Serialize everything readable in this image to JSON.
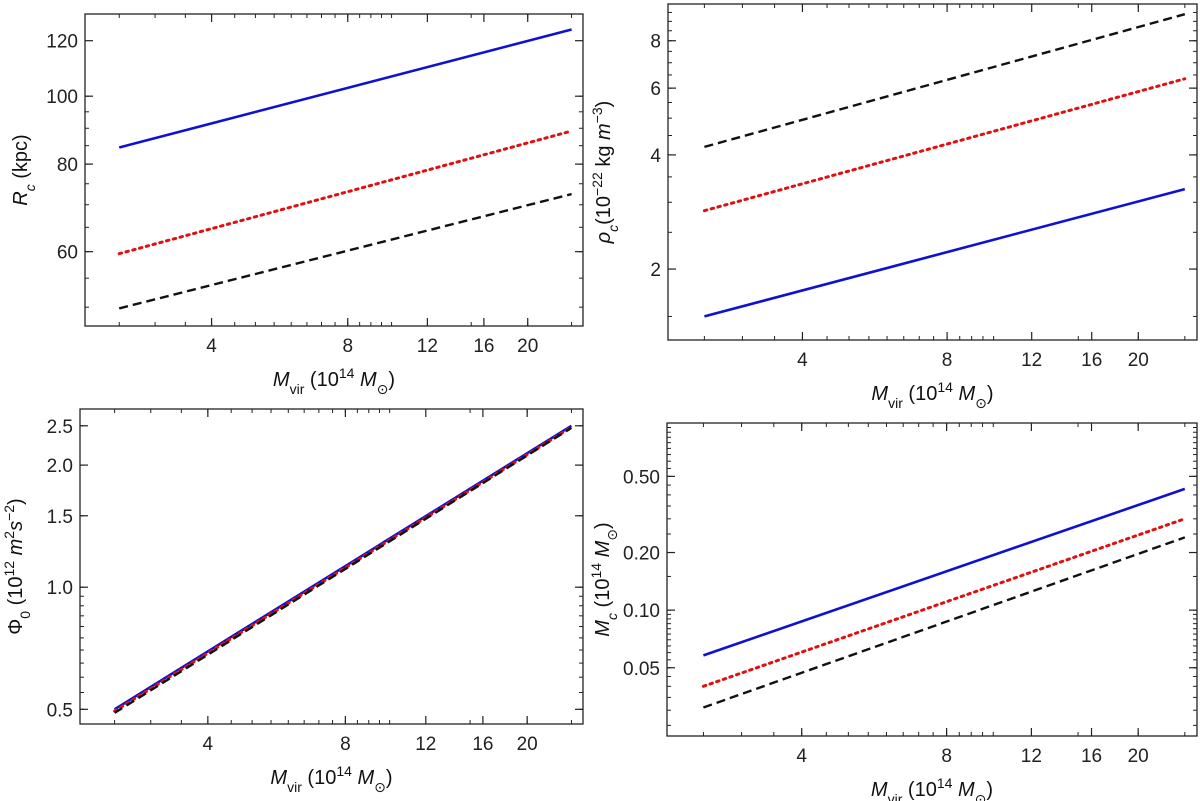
{
  "chart_data": [
    {
      "id": "rc",
      "type": "line",
      "xscale": "log",
      "yscale": "log",
      "xlim": [
        2.1,
        26.5
      ],
      "ylim": [
        47,
        131
      ],
      "xticks": [
        4,
        8,
        12,
        16,
        20
      ],
      "xtick_labels": [
        "4",
        "8",
        "12",
        "16",
        "20"
      ],
      "yticks": [
        60,
        80,
        100,
        120
      ],
      "ytick_labels": [
        "60",
        "80",
        "100",
        "120"
      ],
      "xlabel": {
        "parts": [
          {
            "t": "M",
            "it": true
          },
          {
            "t": "vir",
            "sub": true
          },
          {
            "t": " (10"
          },
          {
            "t": "14",
            "sup": true
          },
          {
            "t": " "
          },
          {
            "t": "M",
            "it": true
          },
          {
            "t": "⊙",
            "sub": true
          },
          {
            "t": ")"
          }
        ]
      },
      "ylabel": {
        "parts": [
          {
            "t": "R",
            "it": true
          },
          {
            "t": "c",
            "sub": true,
            "it": true
          },
          {
            "t": " (kpc)"
          }
        ]
      },
      "series": [
        {
          "style": "solid",
          "color": "#1010d0",
          "x": [
            2.5,
            25
          ],
          "y": [
            84.5,
            124.5
          ]
        },
        {
          "style": "dotted",
          "color": "#e01010",
          "x": [
            2.5,
            25
          ],
          "y": [
            59.6,
            89.2
          ]
        },
        {
          "style": "dashed",
          "color": "#111111",
          "x": [
            2.5,
            25
          ],
          "y": [
            49.8,
            72.5
          ]
        }
      ]
    },
    {
      "id": "rho",
      "type": "line",
      "xscale": "log",
      "yscale": "log",
      "xlim": [
        2.1,
        26.5
      ],
      "ylim": [
        1.3,
        10.0
      ],
      "xticks": [
        4,
        8,
        12,
        16,
        20
      ],
      "xtick_labels": [
        "4",
        "8",
        "12",
        "16",
        "20"
      ],
      "yticks": [
        2,
        4,
        6,
        8
      ],
      "ytick_labels": [
        "2",
        "4",
        "6",
        "8"
      ],
      "xlabel": {
        "parts": [
          {
            "t": "M",
            "it": true
          },
          {
            "t": "vir",
            "sub": true
          },
          {
            "t": " (10"
          },
          {
            "t": "14",
            "sup": true
          },
          {
            "t": " "
          },
          {
            "t": "M",
            "it": true
          },
          {
            "t": "⊙",
            "sub": true
          },
          {
            "t": ")"
          }
        ]
      },
      "ylabel": {
        "parts": [
          {
            "t": "ρ",
            "it": true
          },
          {
            "t": "c",
            "sub": true,
            "it": true
          },
          {
            "t": "(10"
          },
          {
            "t": "−22",
            "sup": true
          },
          {
            "t": " kg "
          },
          {
            "t": "m",
            "it": true
          },
          {
            "t": "−3",
            "sup": true
          },
          {
            "t": ")"
          }
        ]
      },
      "series": [
        {
          "style": "dashed",
          "color": "#111111",
          "x": [
            2.5,
            25
          ],
          "y": [
            4.2,
            9.4
          ]
        },
        {
          "style": "dotted",
          "color": "#e01010",
          "x": [
            2.5,
            25
          ],
          "y": [
            2.85,
            6.35
          ]
        },
        {
          "style": "solid",
          "color": "#1010d0",
          "x": [
            2.5,
            25
          ],
          "y": [
            1.5,
            3.25
          ]
        }
      ]
    },
    {
      "id": "phi",
      "type": "line",
      "xscale": "log",
      "yscale": "log",
      "xlim": [
        2.1,
        26.5
      ],
      "ylim": [
        0.46,
        2.75
      ],
      "xticks": [
        4,
        8,
        12,
        16,
        20
      ],
      "xtick_labels": [
        "4",
        "8",
        "12",
        "16",
        "20"
      ],
      "yticks": [
        0.5,
        1.0,
        1.5,
        2.0,
        2.5
      ],
      "ytick_labels": [
        "0.5",
        "1.0",
        "1.5",
        "2.0",
        "2.5"
      ],
      "xlabel": {
        "parts": [
          {
            "t": "M",
            "it": true
          },
          {
            "t": "vir",
            "sub": true
          },
          {
            "t": " (10"
          },
          {
            "t": "14",
            "sup": true
          },
          {
            "t": " "
          },
          {
            "t": "M",
            "it": true
          },
          {
            "t": "⊙",
            "sub": true
          },
          {
            "t": ")"
          }
        ]
      },
      "ylabel": {
        "parts": [
          {
            "t": "Φ"
          },
          {
            "t": "0",
            "sub": true
          },
          {
            "t": " (10"
          },
          {
            "t": "12",
            "sup": true
          },
          {
            "t": " "
          },
          {
            "t": "m",
            "it": true
          },
          {
            "t": "2",
            "sup": true
          },
          {
            "t": "s",
            "it": true
          },
          {
            "t": "−2",
            "sup": true
          },
          {
            "t": ")"
          }
        ]
      },
      "series": [
        {
          "style": "solid",
          "color": "#1010d0",
          "x": [
            2.5,
            25
          ],
          "y": [
            0.5,
            2.5
          ]
        },
        {
          "style": "dotted",
          "color": "#e01010",
          "x": [
            2.5,
            25
          ],
          "y": [
            0.495,
            2.48
          ]
        },
        {
          "style": "dashed",
          "color": "#111111",
          "x": [
            2.5,
            25
          ],
          "y": [
            0.49,
            2.47
          ]
        }
      ]
    },
    {
      "id": "mc",
      "type": "line",
      "xscale": "log",
      "yscale": "log",
      "xlim": [
        2.1,
        26.5
      ],
      "ylim": [
        0.022,
        0.95
      ],
      "xticks": [
        4,
        8,
        12,
        16,
        20
      ],
      "xtick_labels": [
        "4",
        "8",
        "12",
        "16",
        "20"
      ],
      "yticks": [
        0.05,
        0.1,
        0.2,
        0.5
      ],
      "ytick_labels": [
        "0.05",
        "0.10",
        "0.20",
        "0.50"
      ],
      "xlabel": {
        "parts": [
          {
            "t": "M",
            "it": true
          },
          {
            "t": "vir",
            "sub": true
          },
          {
            "t": " (10"
          },
          {
            "t": "14",
            "sup": true
          },
          {
            "t": " "
          },
          {
            "t": "M",
            "it": true
          },
          {
            "t": "⊙",
            "sub": true
          },
          {
            "t": ")"
          }
        ]
      },
      "ylabel": {
        "parts": [
          {
            "t": "M",
            "it": true
          },
          {
            "t": "c",
            "sub": true,
            "it": true
          },
          {
            "t": " (10"
          },
          {
            "t": "14",
            "sup": true
          },
          {
            "t": " "
          },
          {
            "t": "M",
            "it": true
          },
          {
            "t": "⊙",
            "sub": true
          },
          {
            "t": ")"
          }
        ]
      },
      "series": [
        {
          "style": "solid",
          "color": "#1010d0",
          "x": [
            2.5,
            25
          ],
          "y": [
            0.058,
            0.43
          ]
        },
        {
          "style": "dotted",
          "color": "#e01010",
          "x": [
            2.5,
            25
          ],
          "y": [
            0.04,
            0.3
          ]
        },
        {
          "style": "dashed",
          "color": "#111111",
          "x": [
            2.5,
            25
          ],
          "y": [
            0.031,
            0.24
          ]
        }
      ]
    }
  ]
}
